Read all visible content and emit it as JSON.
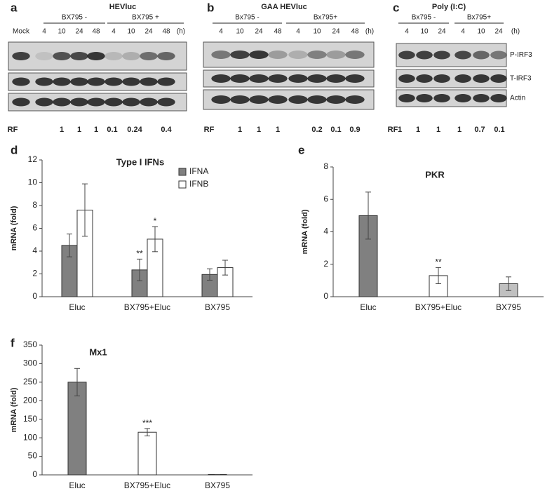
{
  "blots": [
    {
      "letter": "a",
      "title": "HEVluc",
      "groups": [
        "BX795 -",
        "BX795 +"
      ],
      "lanes": [
        "Mock",
        "4",
        "10",
        "24",
        "48",
        "4",
        "10",
        "24",
        "48"
      ],
      "unit": "(h)",
      "rf_label": "RF",
      "rf": [
        1,
        1,
        1,
        0.1,
        0.24,
        0.4
      ]
    },
    {
      "letter": "b",
      "title": "GAA HEVluc",
      "groups": [
        "Bx795 -",
        "Bx795+"
      ],
      "lanes": [
        "4",
        "10",
        "24",
        "48",
        "4",
        "10",
        "24",
        "48"
      ],
      "unit": "(h)",
      "rf_label": "RF",
      "rf": [
        1,
        1,
        1,
        0.2,
        0.1,
        0.9
      ]
    },
    {
      "letter": "c",
      "title": "Poly (I:C)",
      "groups": [
        "Bx795 -",
        "Bx795+"
      ],
      "lanes": [
        "4",
        "10",
        "24",
        "4",
        "10",
        "24"
      ],
      "unit": "(h)",
      "rf_label": "RF",
      "rf": [
        1,
        1,
        1,
        1,
        0.7,
        0.1
      ],
      "rows": [
        "P-IRF3",
        "T-IRF3",
        "Actin"
      ]
    }
  ],
  "chart_data": [
    {
      "type": "bar",
      "panel": "d",
      "title": "Type I IFNs",
      "y_label": "mRNA (fold)",
      "categories": [
        "Eluc",
        "BX795+Eluc",
        "BX795"
      ],
      "series": [
        {
          "name": "IFNA",
          "color": "#808080",
          "values": [
            4.5,
            2.35,
            1.95
          ],
          "errors": [
            1.0,
            0.95,
            0.5
          ]
        },
        {
          "name": "IFNB",
          "color": "#ffffff",
          "values": [
            7.6,
            5.05,
            2.55
          ],
          "errors": [
            2.3,
            1.1,
            0.65
          ]
        }
      ],
      "annotations": [
        {
          "label": "**",
          "category": 1,
          "series": 0
        },
        {
          "label": "*",
          "category": 1,
          "series": 1
        }
      ],
      "ylim": [
        0,
        12
      ],
      "yticks": [
        0,
        2,
        4,
        6,
        8,
        10,
        12
      ],
      "legend": "upper right"
    },
    {
      "type": "bar",
      "panel": "e",
      "title": "PKR",
      "y_label": "mRNA (fold)",
      "categories": [
        "Eluc",
        "BX795+Eluc",
        "BX795"
      ],
      "values": [
        5.0,
        1.3,
        0.8
      ],
      "errors": [
        1.45,
        0.5,
        0.42
      ],
      "colors": [
        "#808080",
        "#ffffff",
        "#c0c0c0"
      ],
      "annotations": [
        {
          "label": "**",
          "category": 1
        }
      ],
      "ylim": [
        0,
        8
      ],
      "yticks": [
        0,
        2,
        4,
        6,
        8
      ]
    },
    {
      "type": "bar",
      "panel": "f",
      "title": "Mx1",
      "y_label": "mRNA (fold)",
      "categories": [
        "Eluc",
        "BX795+Eluc",
        "BX795"
      ],
      "values": [
        250,
        115,
        1
      ],
      "errors": [
        37,
        10,
        0
      ],
      "colors": [
        "#808080",
        "#ffffff",
        "#c0c0c0"
      ],
      "annotations": [
        {
          "label": "***",
          "category": 1
        }
      ],
      "ylim": [
        0,
        350
      ],
      "yticks": [
        0,
        50,
        100,
        150,
        200,
        250,
        300,
        350
      ]
    }
  ]
}
